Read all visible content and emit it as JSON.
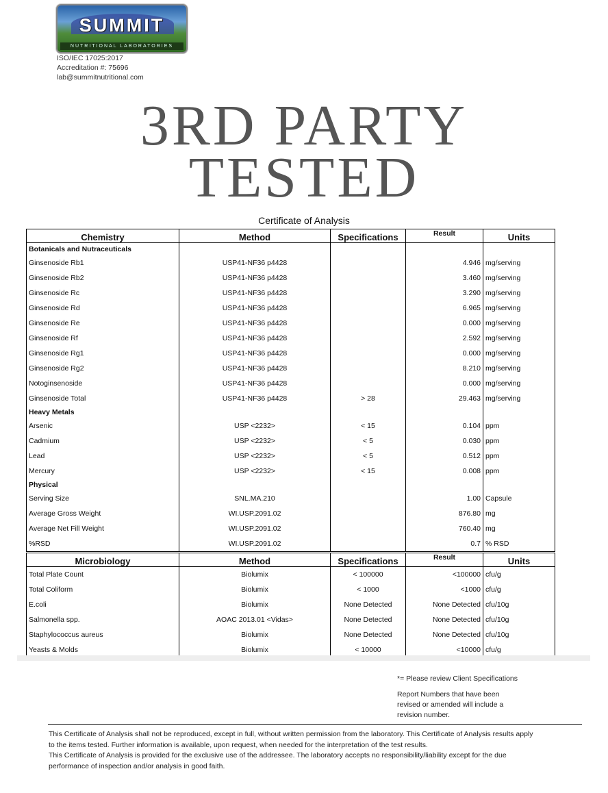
{
  "header": {
    "logo": {
      "name": "SUMMIT",
      "tagline": "NUTRITIONAL LABORATORIES"
    },
    "lab_info": [
      "ISO/IEC 17025:2017",
      "Accreditation #: 75696",
      "lab@summitnutritional.com"
    ],
    "title_line1": "3RD PARTY",
    "title_line2": "TESTED",
    "coa_title": "Certificate of Analysis"
  },
  "chemistry": {
    "columns": [
      "Chemistry",
      "Method",
      "Specifications",
      "Result",
      "Units"
    ],
    "rows": [
      {
        "category": "Botanicals and Nutraceuticals"
      },
      {
        "name": "Ginsenoside Rb1",
        "method": "USP41-NF36 p4428",
        "spec": "",
        "result": "4.946",
        "units": "mg/serving"
      },
      {
        "name": "Ginsenoside Rb2",
        "method": "USP41-NF36 p4428",
        "spec": "",
        "result": "3.460",
        "units": "mg/serving"
      },
      {
        "name": "Ginsenoside Rc",
        "method": "USP41-NF36 p4428",
        "spec": "",
        "result": "3.290",
        "units": "mg/serving"
      },
      {
        "name": "Ginsenoside Rd",
        "method": "USP41-NF36 p4428",
        "spec": "",
        "result": "6.965",
        "units": "mg/serving"
      },
      {
        "name": "Ginsenoside Re",
        "method": "USP41-NF36 p4428",
        "spec": "",
        "result": "0.000",
        "units": "mg/serving"
      },
      {
        "name": "Ginsenoside Rf",
        "method": "USP41-NF36 p4428",
        "spec": "",
        "result": "2.592",
        "units": "mg/serving"
      },
      {
        "name": "Ginsenoside Rg1",
        "method": "USP41-NF36 p4428",
        "spec": "",
        "result": "0.000",
        "units": "mg/serving"
      },
      {
        "name": "Ginsenoside Rg2",
        "method": "USP41-NF36 p4428",
        "spec": "",
        "result": "8.210",
        "units": "mg/serving"
      },
      {
        "name": "Notoginsenoside",
        "method": "USP41-NF36 p4428",
        "spec": "",
        "result": "0.000",
        "units": "mg/serving"
      },
      {
        "name": "Ginsenoside Total",
        "method": "USP41-NF36 p4428",
        "spec": "> 28",
        "result": "29.463",
        "units": "mg/serving"
      },
      {
        "category": "Heavy Metals"
      },
      {
        "name": "Arsenic",
        "method": "USP <2232>",
        "spec": "< 15",
        "result": "0.104",
        "units": "ppm"
      },
      {
        "name": "Cadmium",
        "method": "USP <2232>",
        "spec": "< 5",
        "result": "0.030",
        "units": "ppm"
      },
      {
        "name": "Lead",
        "method": "USP <2232>",
        "spec": "< 5",
        "result": "0.512",
        "units": "ppm"
      },
      {
        "name": "Mercury",
        "method": "USP <2232>",
        "spec": "< 15",
        "result": "0.008",
        "units": "ppm"
      },
      {
        "category": "Physical"
      },
      {
        "name": "Serving Size",
        "method": "SNL.MA.210",
        "spec": "",
        "result": "1.00",
        "units": "Capsule"
      },
      {
        "name": "Average Gross Weight",
        "method": "WI.USP.2091.02",
        "spec": "",
        "result": "876.80",
        "units": "mg"
      },
      {
        "name": "Average Net Fill Weight",
        "method": "WI.USP.2091.02",
        "spec": "",
        "result": "760.40",
        "units": "mg"
      },
      {
        "name": "%RSD",
        "method": "WI.USP.2091.02",
        "spec": "",
        "result": "0.7",
        "units": "% RSD"
      }
    ]
  },
  "microbiology": {
    "columns": [
      "Microbiology",
      "Method",
      "Specifications",
      "Result",
      "Units"
    ],
    "rows": [
      {
        "name": "Total Plate Count",
        "method": "Biolumix",
        "spec": "< 100000",
        "result": "<100000",
        "units": "cfu/g"
      },
      {
        "name": "Total Coliform",
        "method": "Biolumix",
        "spec": "< 1000",
        "result": "<1000",
        "units": "cfu/g"
      },
      {
        "name": "E.coli",
        "method": "Biolumix",
        "spec": "None Detected",
        "result": "None Detected",
        "units": "cfu/10g"
      },
      {
        "name": "Salmonella spp.",
        "method": "AOAC 2013.01 <Vidas>",
        "spec": "None Detected",
        "result": "None Detected",
        "units": "cfu/10g"
      },
      {
        "name": "Staphylococcus aureus",
        "method": "Biolumix",
        "spec": "None Detected",
        "result": "None Detected",
        "units": "cfu/10g"
      },
      {
        "name": "Yeasts & Molds",
        "method": "Biolumix",
        "spec": "< 10000",
        "result": "<10000",
        "units": "cfu/g"
      }
    ]
  },
  "notes": {
    "client_spec": "*= Please review Client Specifications",
    "revision": [
      "Report Numbers that have been",
      "revised or amended will include a",
      "revision number."
    ]
  },
  "disclaimer": [
    "This Certificate of Analysis shall not be reproduced, except in full, without written permission from the laboratory. This Certificate of Analysis results apply",
    "to the items tested. Further information is available, upon request, when needed for the interpretation of the test results.",
    "This Certificate of Analysis is provided for the exclusive use of the addressee. The laboratory accepts no responsibility/liability except for the due",
    "performance of inspection and/or analysis in good faith."
  ]
}
